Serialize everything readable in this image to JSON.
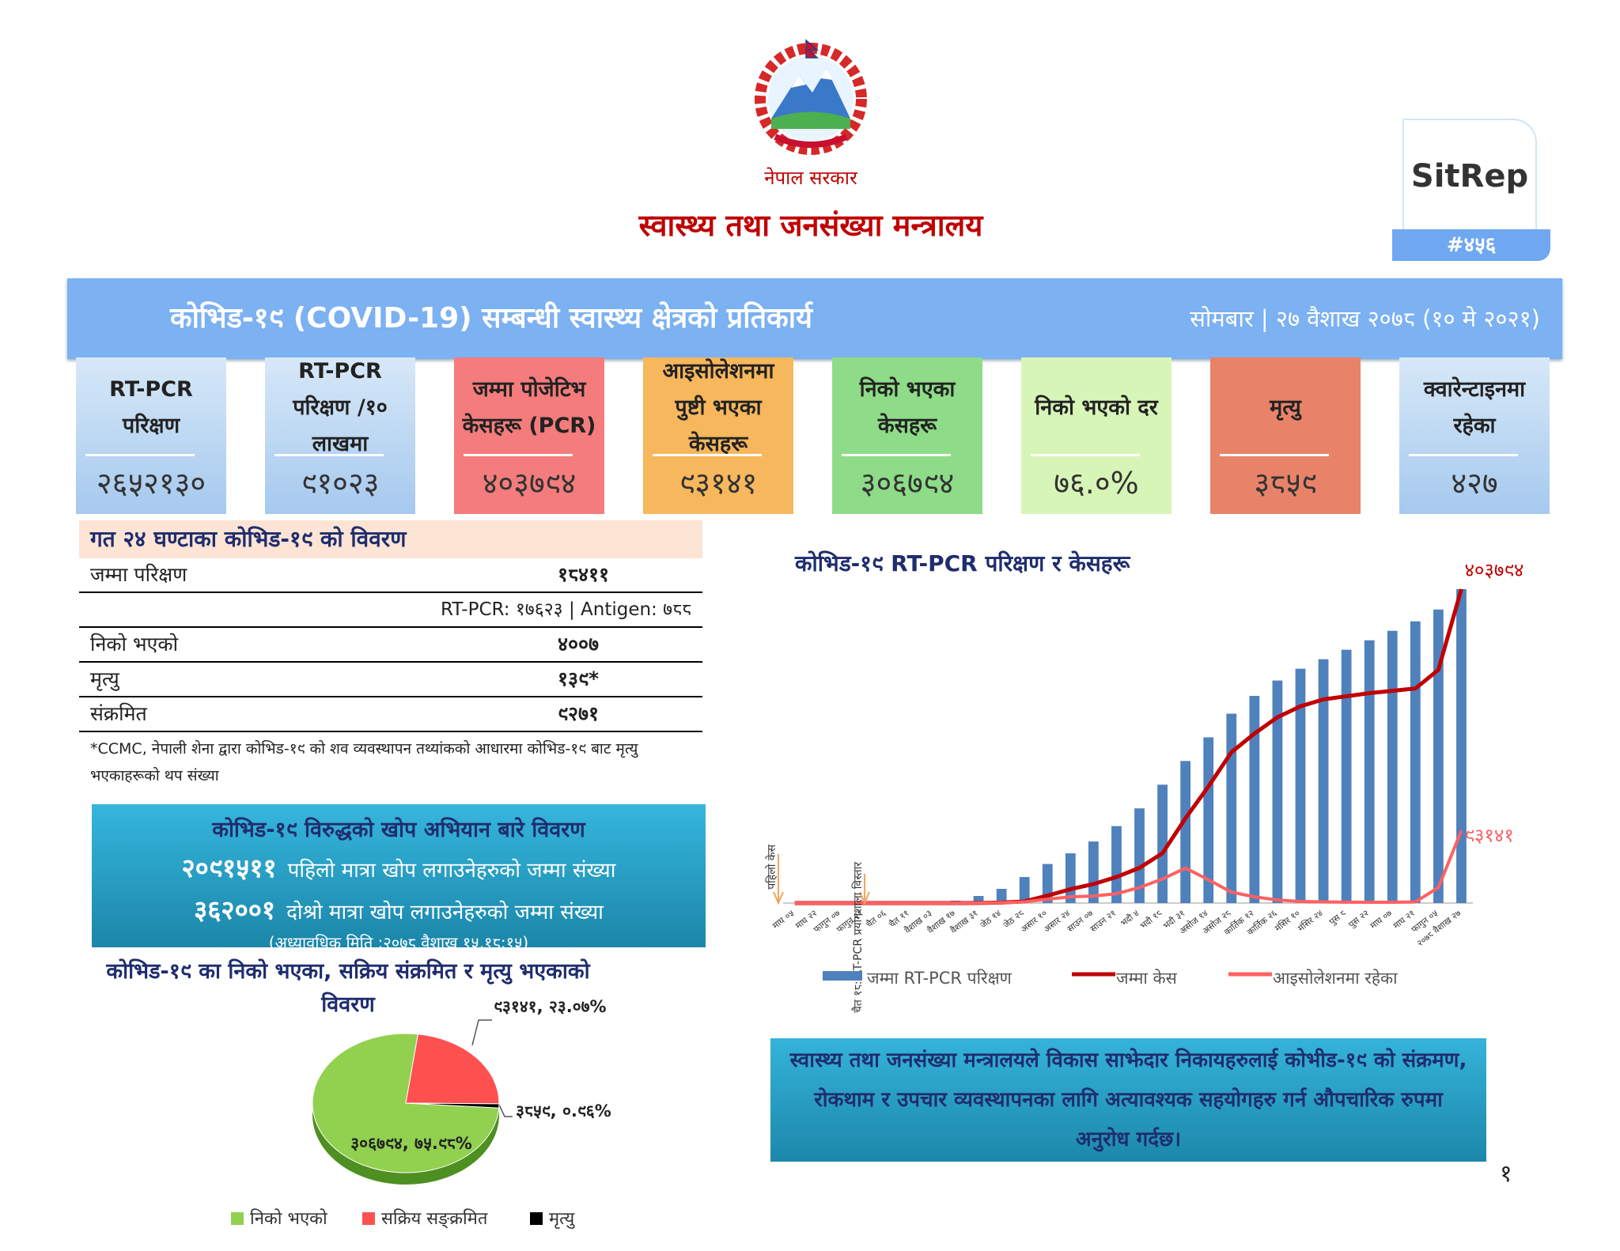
{
  "header": {
    "government": "नेपाल सरकार",
    "ministry": "स्वास्थ्य तथा जनसंख्या मन्त्रालय",
    "badge": "SitRep",
    "issue": "#४५६"
  },
  "banner": {
    "title": "कोभिड-१९ (COVID-19) सम्बन्धी स्वास्थ्य क्षेत्रको प्रतिकार्य",
    "date": "सोमबार | २७ वैशाख २०७८ (१० मे २०२१)"
  },
  "cards": [
    {
      "label": "RT-PCR परिक्षण",
      "value": "२६५२१३०"
    },
    {
      "label": "RT-PCR परिक्षण /१० लाखमा",
      "value": "९१०२३"
    },
    {
      "label": "जम्मा पोजेटिभ केसहरू (PCR)",
      "value": "४०३७९४"
    },
    {
      "label": "आइसोलेशनमा पुष्टी भएका केसहरू",
      "value": "९३१४१"
    },
    {
      "label": "निको भएका केसहरू",
      "value": "३०६७९४"
    },
    {
      "label": "निको भएको दर",
      "value": "७६.०%"
    },
    {
      "label": "मृत्यु",
      "value": "३८५९"
    },
    {
      "label": "क्वारेन्टाइनमा रहेका",
      "value": "४२७"
    }
  ],
  "last24": {
    "title": "गत २४ घण्टाका कोभिड-१९ को विवरण",
    "rows": [
      [
        "जम्मा परिक्षण",
        "१८४११"
      ],
      [
        "निको भएको",
        "४००७"
      ],
      [
        "मृत्यु",
        "१३९*"
      ],
      [
        "संक्रमित",
        "९२७१"
      ]
    ],
    "breakdown": "RT-PCR: १७६२३ | Antigen: ७८८",
    "note": "*CCMC, नेपाली शेना द्वारा कोभिड-१९ को शव व्यवस्थापन तथ्यांकको आधारमा कोभिड-१९ बाट मृत्यु भएकाहरूको थप संख्या"
  },
  "vaccine": {
    "title": "कोभिड-१९ विरुद्धको खोप अभियान बारे विवरण",
    "lines": [
      {
        "value": "२०९१५११",
        "text": "पहिलो मात्रा खोप लगाउनेहरुको जम्मा संख्या"
      },
      {
        "value": "३६२००१",
        "text": "दोश्रो मात्रा खोप लगाउनेहरुको जम्मा संख्या"
      }
    ],
    "updated": "(अध्यावधिक मिति :२०७८ वैशाख १५,१८:१५)"
  },
  "appeal": "स्वास्थ्य तथा जनसंख्या मन्त्रालयले विकास साझेदार निकायहरुलाई कोभीड-१९ को संक्रमण, रोकथाम र उपचार व्यवस्थापनका लागि अत्यावश्यक सहयोगहरु गर्न औपचारिक रुपमा अनुरोध गर्दछ।",
  "page_number": "१",
  "chart_data": [
    {
      "type": "pie",
      "title": "कोभिड-१९ का निको भएका, सक्रिय संक्रमित र मृत्यु भएकाको विवरण",
      "categories": [
        "निको भएको",
        "सक्रिय सङ्क्रमित",
        "मृत्यु"
      ],
      "values": [
        306794,
        93141,
        3859
      ],
      "value_labels": [
        "३०६७९४, ७५.९८%",
        "९३१४१, २३.०७%",
        "३८५९, ०.९६%"
      ],
      "colors": [
        "#92d050",
        "#ff5050",
        "#000000"
      ]
    },
    {
      "type": "bar-line",
      "title": "कोभिड-१९ RT-PCR परिक्षण र केसहरू",
      "categories": [
        "माघ ०५",
        "माघ २२",
        "फागुन ०७",
        "फागुन २१",
        "चैत ०६",
        "चैत ११",
        "वैशाख ०३",
        "वैशाख १७",
        "वैशाख ३१",
        "जेठ १४",
        "जेठ २८",
        "असार १०",
        "असार २४",
        "साउन ०७",
        "साउन २१",
        "भदौ ४",
        "भदौ १८",
        "भदौ ३१",
        "असोज १४",
        "असोज २८",
        "कार्तिक १२",
        "कार्तिक २६",
        "मंसिर १०",
        "मंसिर २४",
        "पुस ८",
        "पुस २२",
        "माघ ०७",
        "माघ २१",
        "फागुन ०५",
        "२०७८ वैशाख २७"
      ],
      "series": [
        {
          "name": "जम्मा RT-PCR परिक्षण",
          "type": "bar",
          "color": "#4f81bd",
          "values": [
            0,
            0,
            0,
            0,
            100,
            1000,
            5000,
            20000,
            60000,
            120000,
            220000,
            330000,
            420000,
            520000,
            650000,
            800000,
            1000000,
            1200000,
            1400000,
            1600000,
            1750000,
            1880000,
            1980000,
            2060000,
            2140000,
            2220000,
            2300000,
            2380000,
            2480000,
            2652130
          ]
        },
        {
          "name": "जम्मा केस",
          "type": "line",
          "color": "#c00000",
          "values": [
            0,
            0,
            0,
            0,
            1,
            6,
            16,
            57,
            134,
            682,
            2099,
            9561,
            17844,
            24432,
            33533,
            45276,
            64122,
            109000,
            150000,
            194000,
            218000,
            239000,
            253000,
            262000,
            266000,
            270000,
            273000,
            276000,
            300000,
            403794
          ],
          "value_labels": [
            null,
            null,
            null,
            null,
            null,
            null,
            null,
            null,
            null,
            null,
            null,
            null,
            null,
            null,
            null,
            null,
            null,
            null,
            null,
            null,
            null,
            null,
            null,
            null,
            null,
            null,
            null,
            null,
            null,
            "४०३७९४"
          ]
        },
        {
          "name": "आइसोलेशनमा रहेका",
          "type": "line",
          "color": "#ff6161",
          "values": [
            0,
            0,
            0,
            0,
            1,
            5,
            10,
            40,
            100,
            500,
            1500,
            5000,
            8000,
            9000,
            12000,
            20000,
            31000,
            45000,
            30000,
            14000,
            8000,
            4000,
            2000,
            1500,
            1200,
            1000,
            1000,
            1500,
            20000,
            93141
          ],
          "value_labels": [
            null,
            null,
            null,
            null,
            null,
            null,
            null,
            null,
            null,
            null,
            null,
            null,
            null,
            null,
            null,
            null,
            null,
            null,
            null,
            null,
            null,
            null,
            null,
            null,
            null,
            null,
            null,
            null,
            null,
            "९३१४१"
          ]
        }
      ],
      "annotations": [
        "पहिलो केस",
        "चैत १८: RT-PCR प्रयोगशाला विस्तार"
      ]
    }
  ]
}
